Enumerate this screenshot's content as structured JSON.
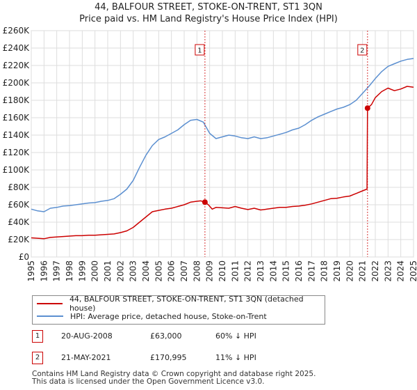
{
  "title_line1": "44, BALFOUR STREET, STOKE-ON-TRENT, ST1 3QN",
  "title_line2": "Price paid vs. HM Land Registry's House Price Index (HPI)",
  "chart_data": {
    "type": "line",
    "x_range": [
      1995.0,
      2025.0
    ],
    "ylim": [
      0,
      260000
    ],
    "y_ticks": [
      0,
      20000,
      40000,
      60000,
      80000,
      100000,
      120000,
      140000,
      160000,
      180000,
      200000,
      220000,
      240000,
      260000
    ],
    "y_tick_labels": [
      "£0",
      "£20K",
      "£40K",
      "£60K",
      "£80K",
      "£100K",
      "£120K",
      "£140K",
      "£160K",
      "£180K",
      "£200K",
      "£220K",
      "£240K",
      "£260K"
    ],
    "x_ticks": [
      1995,
      1996,
      1997,
      1998,
      1999,
      2000,
      2001,
      2002,
      2003,
      2004,
      2005,
      2006,
      2007,
      2008,
      2009,
      2010,
      2011,
      2012,
      2013,
      2014,
      2015,
      2016,
      2017,
      2018,
      2019,
      2020,
      2021,
      2022,
      2023,
      2024,
      2025
    ],
    "x_tick_labels": [
      "1995",
      "1996",
      "1997",
      "1998",
      "1999",
      "2000",
      "2001",
      "2002",
      "2003",
      "2004",
      "2005",
      "2006",
      "2007",
      "2008",
      "2009",
      "2010",
      "2011",
      "2012",
      "2013",
      "2014",
      "2015",
      "2016",
      "2017",
      "2018",
      "2019",
      "2020",
      "2021",
      "2022",
      "2023",
      "2024",
      "2025"
    ],
    "grid": true,
    "series": [
      {
        "name": "44, BALFOUR STREET, STOKE-ON-TRENT, ST1 3QN (detached house)",
        "color": "#cc0000",
        "points": [
          [
            1995.0,
            22000
          ],
          [
            1995.5,
            21500
          ],
          [
            1996.0,
            21000
          ],
          [
            1996.5,
            22500
          ],
          [
            1997.0,
            23000
          ],
          [
            1997.5,
            23500
          ],
          [
            1998.0,
            24000
          ],
          [
            1998.5,
            24500
          ],
          [
            1999.0,
            24500
          ],
          [
            1999.5,
            25000
          ],
          [
            2000.0,
            25000
          ],
          [
            2000.5,
            25500
          ],
          [
            2001.0,
            26000
          ],
          [
            2001.5,
            26500
          ],
          [
            2002.0,
            28000
          ],
          [
            2002.5,
            30000
          ],
          [
            2003.0,
            34000
          ],
          [
            2003.5,
            40000
          ],
          [
            2004.0,
            46000
          ],
          [
            2004.5,
            52000
          ],
          [
            2005.0,
            53500
          ],
          [
            2005.5,
            55000
          ],
          [
            2006.0,
            56000
          ],
          [
            2006.5,
            58000
          ],
          [
            2007.0,
            60000
          ],
          [
            2007.5,
            63000
          ],
          [
            2008.0,
            64000
          ],
          [
            2008.3,
            64500
          ],
          [
            2008.63,
            63000
          ],
          [
            2008.9,
            60000
          ],
          [
            2009.2,
            55000
          ],
          [
            2009.5,
            57000
          ],
          [
            2010.0,
            56500
          ],
          [
            2010.5,
            56000
          ],
          [
            2011.0,
            58000
          ],
          [
            2011.5,
            56000
          ],
          [
            2012.0,
            54500
          ],
          [
            2012.5,
            56000
          ],
          [
            2013.0,
            54000
          ],
          [
            2013.5,
            55000
          ],
          [
            2014.0,
            56000
          ],
          [
            2014.5,
            57000
          ],
          [
            2015.0,
            57000
          ],
          [
            2015.5,
            58000
          ],
          [
            2016.0,
            58500
          ],
          [
            2016.5,
            59500
          ],
          [
            2017.0,
            61000
          ],
          [
            2017.5,
            63000
          ],
          [
            2018.0,
            65000
          ],
          [
            2018.5,
            67000
          ],
          [
            2019.0,
            67500
          ],
          [
            2019.5,
            69000
          ],
          [
            2020.0,
            70000
          ],
          [
            2020.5,
            73000
          ],
          [
            2021.0,
            76000
          ],
          [
            2021.35,
            78000
          ],
          [
            2021.39,
            170995
          ],
          [
            2021.7,
            175000
          ],
          [
            2022.0,
            183000
          ],
          [
            2022.5,
            190000
          ],
          [
            2023.0,
            194000
          ],
          [
            2023.5,
            191000
          ],
          [
            2024.0,
            193000
          ],
          [
            2024.5,
            196000
          ],
          [
            2025.0,
            195000
          ]
        ]
      },
      {
        "name": "HPI: Average price, detached house, Stoke-on-Trent",
        "color": "#5b8fd0",
        "points": [
          [
            1995.0,
            55000
          ],
          [
            1995.5,
            53000
          ],
          [
            1996.0,
            52000
          ],
          [
            1996.5,
            56000
          ],
          [
            1997.0,
            57000
          ],
          [
            1997.5,
            58500
          ],
          [
            1998.0,
            59000
          ],
          [
            1998.5,
            60000
          ],
          [
            1999.0,
            61000
          ],
          [
            1999.5,
            62000
          ],
          [
            2000.0,
            62500
          ],
          [
            2000.5,
            64000
          ],
          [
            2001.0,
            65000
          ],
          [
            2001.5,
            67000
          ],
          [
            2002.0,
            72000
          ],
          [
            2002.5,
            78000
          ],
          [
            2003.0,
            88000
          ],
          [
            2003.5,
            103000
          ],
          [
            2004.0,
            117000
          ],
          [
            2004.5,
            128000
          ],
          [
            2005.0,
            135000
          ],
          [
            2005.5,
            138000
          ],
          [
            2006.0,
            142000
          ],
          [
            2006.5,
            146000
          ],
          [
            2007.0,
            152000
          ],
          [
            2007.5,
            157000
          ],
          [
            2008.0,
            158000
          ],
          [
            2008.5,
            155000
          ],
          [
            2009.0,
            142000
          ],
          [
            2009.5,
            136000
          ],
          [
            2010.0,
            138000
          ],
          [
            2010.5,
            140000
          ],
          [
            2011.0,
            139000
          ],
          [
            2011.5,
            137000
          ],
          [
            2012.0,
            136000
          ],
          [
            2012.5,
            138000
          ],
          [
            2013.0,
            136000
          ],
          [
            2013.5,
            137000
          ],
          [
            2014.0,
            139000
          ],
          [
            2014.5,
            141000
          ],
          [
            2015.0,
            143000
          ],
          [
            2015.5,
            146000
          ],
          [
            2016.0,
            148000
          ],
          [
            2016.5,
            152000
          ],
          [
            2017.0,
            157000
          ],
          [
            2017.5,
            161000
          ],
          [
            2018.0,
            164000
          ],
          [
            2018.5,
            167000
          ],
          [
            2019.0,
            170000
          ],
          [
            2019.5,
            172000
          ],
          [
            2020.0,
            175000
          ],
          [
            2020.5,
            180000
          ],
          [
            2021.0,
            188000
          ],
          [
            2021.5,
            196000
          ],
          [
            2022.0,
            205000
          ],
          [
            2022.5,
            213000
          ],
          [
            2023.0,
            219000
          ],
          [
            2023.5,
            222000
          ],
          [
            2024.0,
            225000
          ],
          [
            2024.5,
            227000
          ],
          [
            2025.0,
            228000
          ]
        ]
      }
    ],
    "sales": [
      {
        "label": "1",
        "x": 2008.63,
        "price": 63000
      },
      {
        "label": "2",
        "x": 2021.39,
        "price": 170995
      }
    ]
  },
  "legend": {
    "property_label": "44, BALFOUR STREET, STOKE-ON-TRENT, ST1 3QN (detached house)",
    "hpi_label": "HPI: Average price, detached house, Stoke-on-Trent",
    "property_color": "#cc0000",
    "hpi_color": "#5b8fd0"
  },
  "transactions": [
    {
      "label": "1",
      "date": "20-AUG-2008",
      "price": "£63,000",
      "hpi": "60% ↓ HPI"
    },
    {
      "label": "2",
      "date": "21-MAY-2021",
      "price": "£170,995",
      "hpi": "11% ↓ HPI"
    }
  ],
  "footer_line1": "Contains HM Land Registry data © Crown copyright and database right 2025.",
  "footer_line2": "This data is licensed under the Open Government Licence v3.0."
}
